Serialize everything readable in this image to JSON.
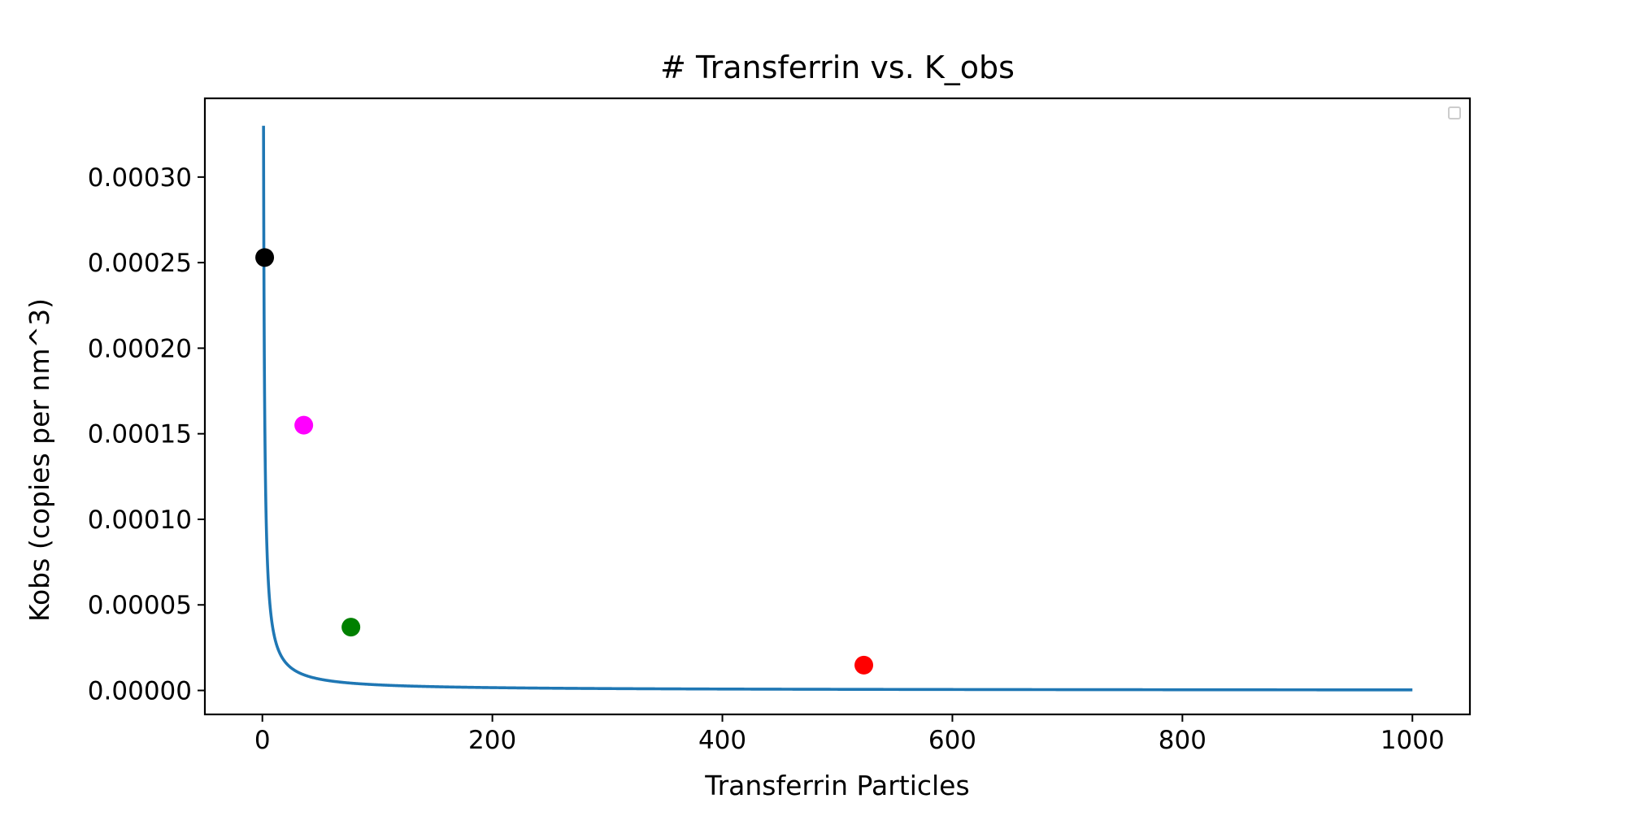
{
  "chart_data": {
    "type": "scatter",
    "title": "# Transferrin vs. K_obs",
    "xlabel": "Transferrin Particles",
    "ylabel": "Kobs (copies per nm^3)",
    "xlim": [
      -50,
      1050
    ],
    "ylim": [
      -1.4e-05,
      0.000346
    ],
    "x_ticks": [
      0,
      200,
      400,
      600,
      800,
      1000
    ],
    "x_tick_labels": [
      "0",
      "200",
      "400",
      "600",
      "800",
      "1000"
    ],
    "y_ticks": [
      0,
      5e-05,
      0.0001,
      0.00015,
      0.0002,
      0.00025,
      0.0003
    ],
    "y_tick_labels": [
      "0.00000",
      "0.00005",
      "0.00010",
      "0.00015",
      "0.00020",
      "0.00025",
      "0.00030"
    ],
    "grid": false,
    "legend": "top-right (empty)",
    "series": [
      {
        "kind": "line",
        "color": "#1f77b4",
        "function": "y = 0.00033 / x",
        "x_range": [
          1,
          1000
        ],
        "approximate_values": [
          {
            "x": 1,
            "y": 0.00033
          },
          {
            "x": 2,
            "y": 0.000165
          },
          {
            "x": 5,
            "y": 6.6e-05
          },
          {
            "x": 10,
            "y": 3.3e-05
          },
          {
            "x": 50,
            "y": 6.6e-06
          },
          {
            "x": 100,
            "y": 3.3e-06
          },
          {
            "x": 500,
            "y": 6.6e-07
          },
          {
            "x": 1000,
            "y": 3.3e-07
          }
        ]
      },
      {
        "kind": "points",
        "points": [
          {
            "x": 2,
            "y": 0.000253,
            "color": "#000000"
          },
          {
            "x": 36,
            "y": 0.000155,
            "color": "#ff00ff"
          },
          {
            "x": 77,
            "y": 3.7e-05,
            "color": "#008000"
          },
          {
            "x": 523,
            "y": 1.48e-05,
            "color": "#ff0000"
          }
        ]
      }
    ]
  }
}
